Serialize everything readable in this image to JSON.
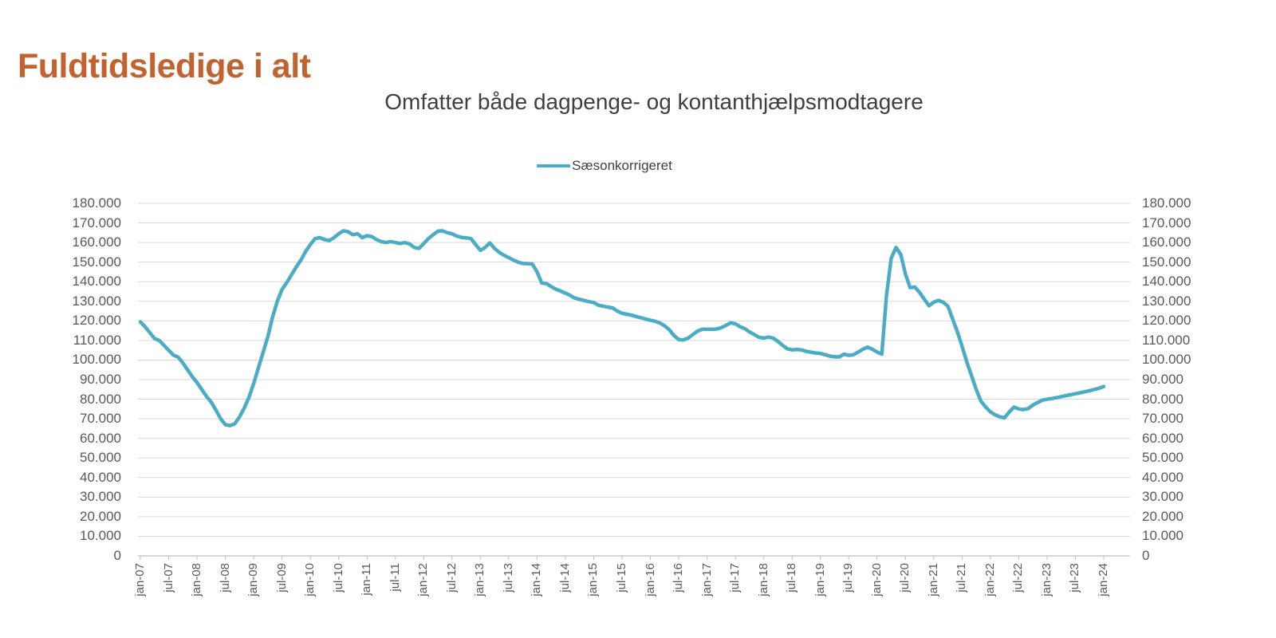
{
  "title": {
    "text": "Fuldtidsledige i alt",
    "color": "#C1622F"
  },
  "chart": {
    "subtitle": "Omfatter både dagpenge- og kontanthjælpsmodtagere",
    "colors": {
      "line": "#4BACC6",
      "gridline": "#D9D9D9",
      "axis": "#BFBFBF",
      "axis_text": "#595959",
      "subtitle_text": "#3F3F3F",
      "legend_text": "#404040"
    }
  },
  "chart_data": {
    "type": "line",
    "title": "Omfatter både dagpenge- og kontanthjælpsmodtagere",
    "legend_position": "top",
    "grid": true,
    "ylim": [
      0,
      180000
    ],
    "y_tick_step": 10000,
    "y_tick_labels": [
      "0",
      "10.000",
      "20.000",
      "30.000",
      "40.000",
      "50.000",
      "60.000",
      "70.000",
      "80.000",
      "90.000",
      "100.000",
      "110.000",
      "120.000",
      "130.000",
      "140.000",
      "150.000",
      "160.000",
      "170.000",
      "180.000"
    ],
    "x_tick_labels": [
      "jan-07",
      "jul-07",
      "jan-08",
      "jul-08",
      "jan-09",
      "jul-09",
      "jan-10",
      "jul-10",
      "jan-11",
      "jul-11",
      "jan-12",
      "jul-12",
      "jan-13",
      "jul-13",
      "jan-14",
      "jul-14",
      "jan-15",
      "jul-15",
      "jan-16",
      "jul-16",
      "jan-17",
      "jul-17",
      "jan-18",
      "jul-18",
      "jan-19",
      "jul-19",
      "jan-20",
      "jul-20",
      "jan-21",
      "jul-21",
      "jan-22",
      "jul-22",
      "jan-23",
      "jul-23",
      "jan-24"
    ],
    "x_frequency": "monthly",
    "x_start": "jan-07",
    "x_end": "jan-24",
    "series": [
      {
        "name": "Sæsonkorrigeret",
        "color": "#4BACC6",
        "values": [
          119500,
          117000,
          114000,
          111000,
          110000,
          107500,
          105000,
          102500,
          101500,
          98500,
          95000,
          91500,
          88500,
          85000,
          81500,
          78500,
          74500,
          70000,
          67000,
          66500,
          67500,
          71000,
          75500,
          81000,
          88000,
          96000,
          104000,
          112000,
          122000,
          130000,
          136000,
          139500,
          143500,
          147500,
          151000,
          155500,
          159000,
          162000,
          162500,
          161500,
          161000,
          162500,
          164500,
          166000,
          165500,
          164000,
          164500,
          162500,
          163500,
          163000,
          161500,
          160500,
          160000,
          160500,
          160000,
          159500,
          160000,
          159300,
          157500,
          157000,
          159500,
          162000,
          164000,
          165800,
          166000,
          165000,
          164500,
          163300,
          162600,
          162400,
          162000,
          159000,
          156000,
          157500,
          159800,
          157000,
          155000,
          153500,
          152300,
          151000,
          150000,
          149300,
          149200,
          149000,
          145000,
          139300,
          139000,
          137500,
          136200,
          135200,
          134200,
          133000,
          131600,
          131000,
          130400,
          129800,
          129400,
          128000,
          127500,
          127000,
          126600,
          125000,
          123900,
          123400,
          122900,
          122200,
          121600,
          120900,
          120300,
          119800,
          118900,
          117500,
          115500,
          112500,
          110500,
          110300,
          111200,
          113000,
          114800,
          115700,
          115700,
          115700,
          115800,
          116500,
          117700,
          119000,
          118500,
          117000,
          116000,
          114300,
          113000,
          111600,
          111200,
          111700,
          111200,
          109500,
          107500,
          105700,
          105200,
          105400,
          105200,
          104400,
          104000,
          103600,
          103400,
          102700,
          102000,
          101600,
          101600,
          103000,
          102400,
          102700,
          104100,
          105500,
          106600,
          105500,
          104100,
          103000,
          133000,
          152000,
          157500,
          154000,
          144000,
          137000,
          137300,
          134500,
          131000,
          127700,
          129500,
          130500,
          129500,
          127500,
          121000,
          114500,
          107000,
          99000,
          92000,
          85000,
          79000,
          76000,
          73500,
          72000,
          71000,
          70500,
          73500,
          76000,
          75000,
          74700,
          75200,
          77000,
          78300,
          79500,
          80000,
          80300,
          80800,
          81300,
          81800,
          82300,
          82800,
          83300,
          83800,
          84300,
          85000,
          85600,
          86500
        ]
      }
    ]
  }
}
